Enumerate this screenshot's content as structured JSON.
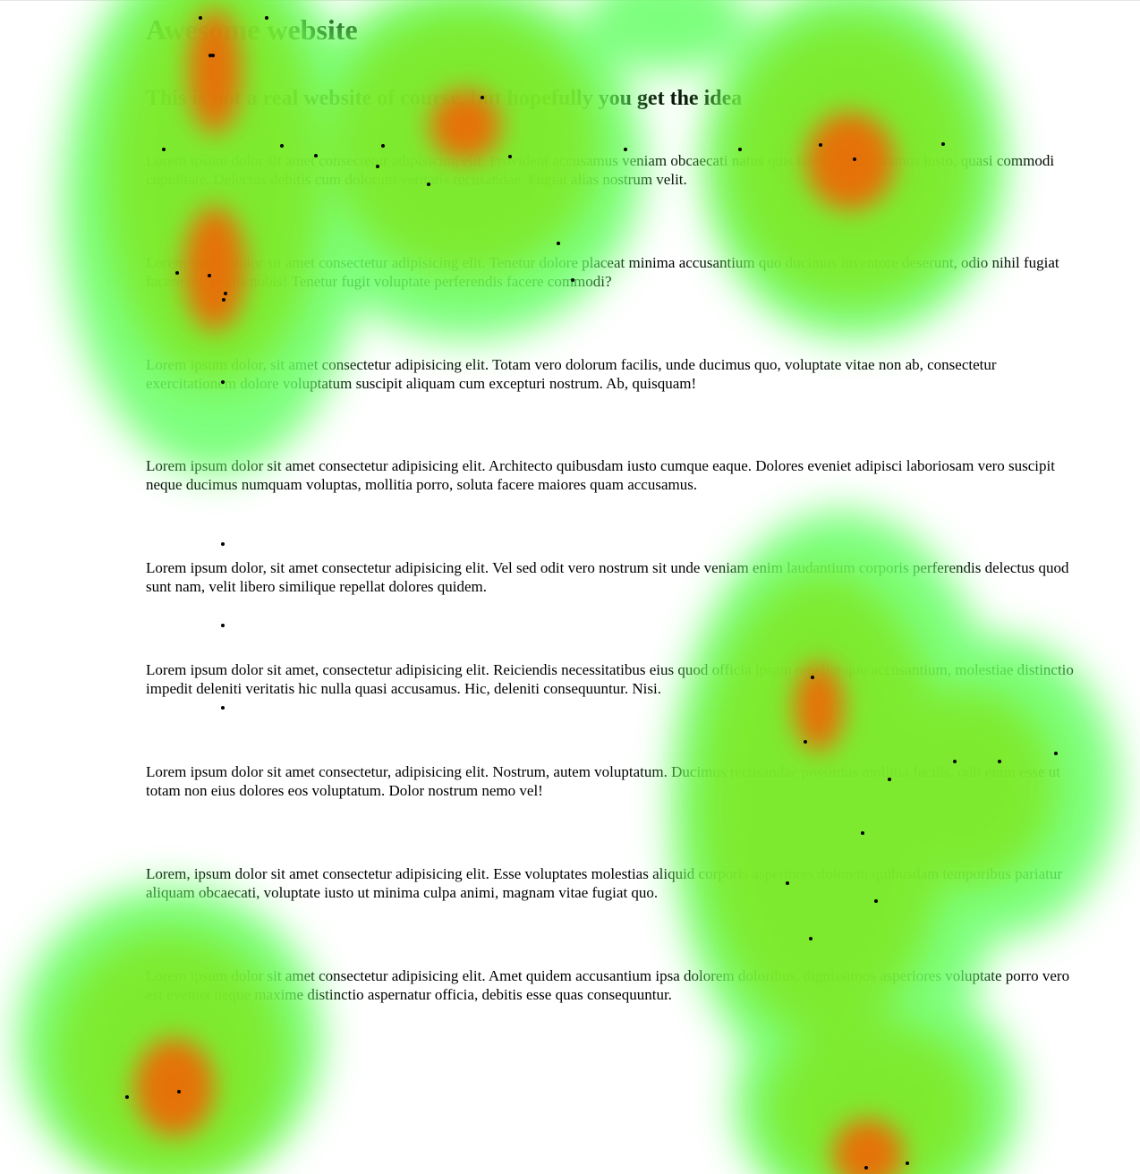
{
  "page": {
    "title": "Awesome website",
    "subtitle": "This is not a real website of course, but hopefully you get the idea",
    "paragraphs": [
      "Lorem ipsum dolor sit amet consectetur adipisicing elit. Provident accusamus veniam obcaecati natus quis laboriosam ducimus iusto, quasi commodi cupiditate. Delectus debitis cum dolorum veritatis recusandae. Fugiat alias nostrum velit.",
      "Lorem ipsum dolor sit amet consectetur adipisicing elit. Tenetur dolore placeat minima accusantium quo ducimus inventore deserunt, odio nihil fugiat facere reiciendis nobis! Tenetur fugit voluptate perferendis facere commodi?",
      "Lorem ipsum dolor, sit amet consectetur adipisicing elit. Totam vero dolorum facilis, unde ducimus quo, voluptate vitae non ab, consectetur exercitationem dolore voluptatum suscipit aliquam cum excepturi nostrum. Ab, quisquam!",
      "Lorem ipsum dolor sit amet consectetur adipisicing elit. Architecto quibusdam iusto cumque eaque. Dolores eveniet adipisci laboriosam vero suscipit neque ducimus numquam voluptas, mollitia porro, soluta facere maiores quam accusamus.",
      "Lorem ipsum dolor, sit amet consectetur adipisicing elit. Vel sed odit vero nostrum sit unde veniam enim laudantium corporis perferendis delectus quod sunt nam, velit libero similique repellat dolores quidem.",
      "Lorem ipsum dolor sit amet, consectetur adipisicing elit. Reiciendis necessitatibus eius quod officia ipsam repellat quo accusantium, molestiae distinctio impedit deleniti veritatis hic nulla quasi accusamus. Hic, deleniti consequuntur. Nisi.",
      "Lorem ipsum dolor sit amet consectetur, adipisicing elit. Nostrum, autem voluptatum. Ducimus recusandae possimus mollitia facilis, odit enim esse ut totam non eius dolores eos voluptatum. Dolor nostrum nemo vel!",
      "Lorem, ipsum dolor sit amet consectetur adipisicing elit. Esse voluptates molestias aliquid corporis asperiores dolorem quibusdam temporibus pariatur aliquam obcaecati, voluptate iusto ut minima culpa animi, magnam vitae fugiat quo.",
      "Lorem ipsum dolor sit amet consectetur adipisicing elit. Amet quidem accusantium ipsa dolorem doloribus, dignissimos asperiores voluptate porro vero est eveniet neque maxime distinctio aspernatur officia, debitis esse quas consequuntur."
    ]
  },
  "heatmap": {
    "colors": {
      "low": "#66ff66",
      "mid": "#7fe61a",
      "high": "#ff5500",
      "point": "#000000"
    }
  }
}
